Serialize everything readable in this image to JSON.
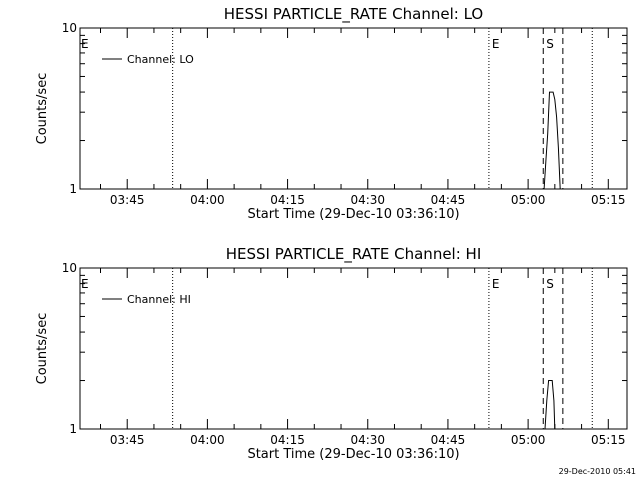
{
  "chart_data": [
    {
      "type": "line",
      "title": "HESSI PARTICLE_RATE Channel: LO",
      "xlabel": "Start Time (29-Dec-10 03:36:10)",
      "ylabel": "Counts/sec",
      "y_scale": "log",
      "ylim": [
        1,
        10
      ],
      "y_ticks": [
        "1",
        "10"
      ],
      "x_ticks": [
        "03:45",
        "04:00",
        "04:15",
        "04:30",
        "04:45",
        "05:00",
        "05:15"
      ],
      "legend": {
        "placement": "top-left",
        "entries": [
          "Channel: LO"
        ]
      },
      "series": [
        {
          "name": "Channel: LO",
          "points": [
            [
              "05:02:30",
              1.0
            ],
            [
              "05:03:00",
              1.0
            ],
            [
              "05:03:20",
              1.5
            ],
            [
              "05:03:40",
              2.2
            ],
            [
              "05:04:00",
              4.0
            ],
            [
              "05:04:40",
              4.0
            ],
            [
              "05:05:00",
              3.6
            ],
            [
              "05:05:20",
              2.8
            ],
            [
              "05:05:40",
              1.8
            ],
            [
              "05:06:00",
              1.0
            ]
          ]
        }
      ],
      "markers": [
        {
          "label": "E",
          "time": "03:36:10",
          "style": "text"
        },
        {
          "label": "",
          "time": "03:53:30",
          "style": "dotted"
        },
        {
          "label": "E",
          "time": "04:52:40",
          "style": "dotted"
        },
        {
          "label": "S",
          "time": "05:02:50",
          "style": "dashed"
        },
        {
          "label": "",
          "time": "05:06:30",
          "style": "dashed"
        },
        {
          "label": "",
          "time": "05:12:00",
          "style": "dotted"
        }
      ]
    },
    {
      "type": "line",
      "title": "HESSI PARTICLE_RATE Channel: HI",
      "xlabel": "Start Time (29-Dec-10 03:36:10)",
      "ylabel": "Counts/sec",
      "y_scale": "log",
      "ylim": [
        1,
        10
      ],
      "y_ticks": [
        "1",
        "10"
      ],
      "x_ticks": [
        "03:45",
        "04:00",
        "04:15",
        "04:30",
        "04:45",
        "05:00",
        "05:15"
      ],
      "legend": {
        "placement": "top-left",
        "entries": [
          "Channel: HI"
        ]
      },
      "series": [
        {
          "name": "Channel: HI",
          "points": [
            [
              "05:02:50",
              1.0
            ],
            [
              "05:03:10",
              1.0
            ],
            [
              "05:03:30",
              1.5
            ],
            [
              "05:03:50",
              2.0
            ],
            [
              "05:04:30",
              2.0
            ],
            [
              "05:04:50",
              1.5
            ],
            [
              "05:05:00",
              1.0
            ]
          ]
        }
      ],
      "markers": [
        {
          "label": "E",
          "time": "03:36:10",
          "style": "text"
        },
        {
          "label": "",
          "time": "03:53:30",
          "style": "dotted"
        },
        {
          "label": "E",
          "time": "04:52:40",
          "style": "dotted"
        },
        {
          "label": "S",
          "time": "05:02:50",
          "style": "dashed"
        },
        {
          "label": "",
          "time": "05:06:30",
          "style": "dashed"
        },
        {
          "label": "",
          "time": "05:12:00",
          "style": "dotted"
        }
      ]
    }
  ],
  "footer": {
    "timestamp": "29-Dec-2010 05:41"
  }
}
